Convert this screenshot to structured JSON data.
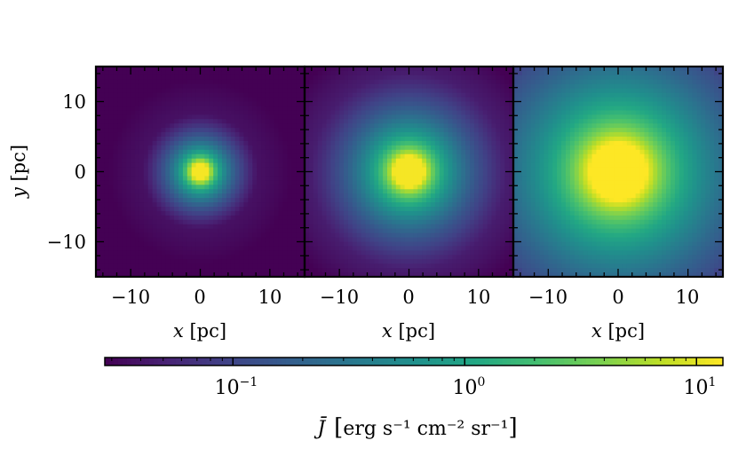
{
  "chart_data": {
    "type": "heatmap",
    "panels": [
      {
        "xlabel": "x [pc]",
        "ylabel": "y [pc]",
        "xlim": [
          -15,
          15
        ],
        "ylim": [
          -15,
          15
        ],
        "peak_value": 12,
        "core_radius_pc": 1.2,
        "background_value": 0.045,
        "edge_value": 0.028
      },
      {
        "xlabel": "x [pc]",
        "ylabel": "",
        "xlim": [
          -15,
          15
        ],
        "ylim": [
          -15,
          15
        ],
        "peak_value": 12,
        "core_radius_pc": 2.2,
        "background_value": 0.08,
        "edge_value": 0.04
      },
      {
        "xlabel": "x [pc]",
        "ylabel": "",
        "xlim": [
          -15,
          15
        ],
        "ylim": [
          -15,
          15
        ],
        "peak_value": 14,
        "core_radius_pc": 4.0,
        "background_value": 0.16,
        "edge_value": 0.1
      }
    ],
    "x_ticks": [
      -10,
      0,
      10
    ],
    "x_tick_labels": [
      "−10",
      "0",
      "10"
    ],
    "y_ticks": [
      10,
      0,
      -10
    ],
    "y_tick_labels": [
      "10",
      "0",
      "−10"
    ],
    "x_axis_var": "x",
    "x_axis_unit": "[pc]",
    "y_axis_var": "y",
    "y_axis_unit": "[pc]",
    "colorbar": {
      "scale": "log",
      "range": [
        0.028,
        13
      ],
      "ticks": [
        0.1,
        1,
        10
      ],
      "tick_bases": [
        "10",
        "10",
        "10"
      ],
      "tick_exps": [
        "−1",
        "0",
        "1"
      ],
      "label_symbol": "J̄",
      "label_unit": "erg s⁻¹ cm⁻² sr⁻¹",
      "colormap": "viridis"
    }
  }
}
